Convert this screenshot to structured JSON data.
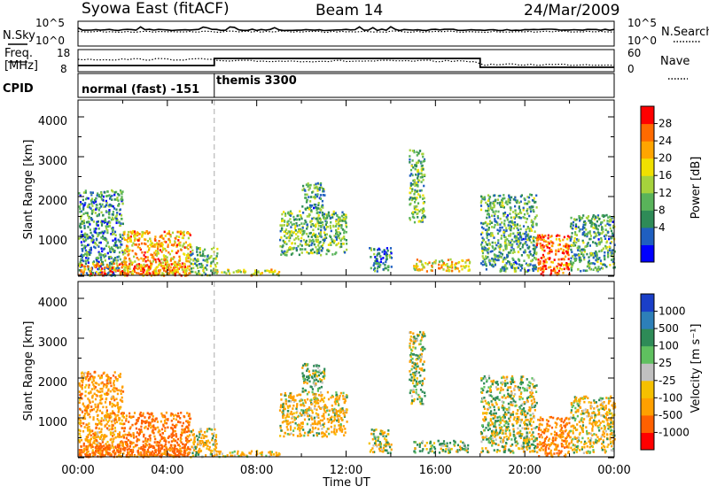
{
  "header": {
    "station": "Syowa East (fitACF)",
    "beam": "Beam 14",
    "date": "24/Mar/2009"
  },
  "top_panels": {
    "nsky_label": "N.Sky",
    "nsky_ticks": [
      "10^5",
      "10^0"
    ],
    "nsearch_label": "N.Search",
    "nsearch_ticks": [
      "10^5",
      "10^0"
    ],
    "freq_label_line1": "Freq.",
    "freq_label_line2": "[MHz]",
    "freq_ticks": [
      "18",
      "8"
    ],
    "nave_label": "Nave",
    "nave_ticks": [
      "60",
      "0"
    ],
    "cpid_label": "CPID",
    "cpid_modes": [
      {
        "label": "normal (fast) -151",
        "start_hour": 0
      },
      {
        "label": "themis 3300",
        "start_hour": 6.1
      }
    ]
  },
  "power_panel": {
    "ylabel": "Slant Range [km]",
    "yticks": [
      "4000",
      "3000",
      "2000",
      "1000"
    ],
    "colorbar_label": "Power [dB]",
    "colorbar_ticks": [
      "28",
      "24",
      "20",
      "16",
      "12",
      "8",
      "4"
    ],
    "colors": [
      "#0000ff",
      "#1f5fc0",
      "#2e8b57",
      "#59b35a",
      "#a6d23c",
      "#f0e000",
      "#ffa500",
      "#ff6a00",
      "#ff0000"
    ]
  },
  "velocity_panel": {
    "ylabel": "Slant Range [km]",
    "yticks": [
      "4000",
      "3000",
      "2000",
      "1000"
    ],
    "colorbar_label": "Velocity [m s⁻¹]",
    "colorbar_ticks": [
      "1000",
      "500",
      "100",
      "25",
      "-25",
      "-100",
      "-500",
      "-1000"
    ],
    "colors": [
      "#1a3fc8",
      "#2d7fb8",
      "#2e8b57",
      "#5fc05f",
      "#c0c0c0",
      "#f5c000",
      "#ffa000",
      "#ff6000",
      "#ff0000"
    ]
  },
  "xaxis": {
    "ticks": [
      "00:00",
      "04:00",
      "08:00",
      "12:00",
      "16:00",
      "20:00",
      "00:00"
    ],
    "label": "Time UT"
  },
  "chart_data": {
    "type": "heatmap",
    "title": "Syowa East (fitACF) Beam 14 24/Mar/2009",
    "xlabel": "Time UT",
    "ylabel": "Slant Range [km]",
    "xlim_hours": [
      0,
      24
    ],
    "ylim_km": [
      180,
      4500
    ],
    "mode_change_hour": 6.1,
    "freq_step_hour": 18.0,
    "echo_regions": [
      {
        "t0": 0.0,
        "t1": 2.0,
        "r0": 200,
        "r1": 2300,
        "power_db": 10,
        "velocity": -300
      },
      {
        "t0": 0.0,
        "t1": 5.0,
        "r0": 200,
        "r1": 500,
        "power_db": 26,
        "velocity": -700
      },
      {
        "t0": 2.0,
        "t1": 5.0,
        "r0": 200,
        "r1": 1300,
        "power_db": 22,
        "velocity": -600
      },
      {
        "t0": 5.0,
        "t1": 6.2,
        "r0": 200,
        "r1": 900,
        "power_db": 14,
        "velocity": -100
      },
      {
        "t0": 6.0,
        "t1": 9.0,
        "r0": 200,
        "r1": 350,
        "power_db": 18,
        "velocity": -200
      },
      {
        "t0": 9.0,
        "t1": 12.0,
        "r0": 700,
        "r1": 1800,
        "power_db": 14,
        "velocity": -150
      },
      {
        "t0": 10.0,
        "t1": 11.0,
        "r0": 1800,
        "r1": 2500,
        "power_db": 12,
        "velocity": 50
      },
      {
        "t0": 13.0,
        "t1": 14.0,
        "r0": 300,
        "r1": 900,
        "power_db": 10,
        "velocity": 0
      },
      {
        "t0": 14.8,
        "t1": 15.5,
        "r0": 1500,
        "r1": 3300,
        "power_db": 14,
        "velocity": 20
      },
      {
        "t0": 15.0,
        "t1": 17.5,
        "r0": 300,
        "r1": 600,
        "power_db": 20,
        "velocity": 100
      },
      {
        "t0": 18.0,
        "t1": 20.5,
        "r0": 300,
        "r1": 2200,
        "power_db": 12,
        "velocity": 20
      },
      {
        "t0": 20.5,
        "t1": 22.0,
        "r0": 200,
        "r1": 1200,
        "power_db": 26,
        "velocity": -500
      },
      {
        "t0": 22.0,
        "t1": 24.0,
        "r0": 300,
        "r1": 1700,
        "power_db": 12,
        "velocity": -100
      }
    ]
  }
}
